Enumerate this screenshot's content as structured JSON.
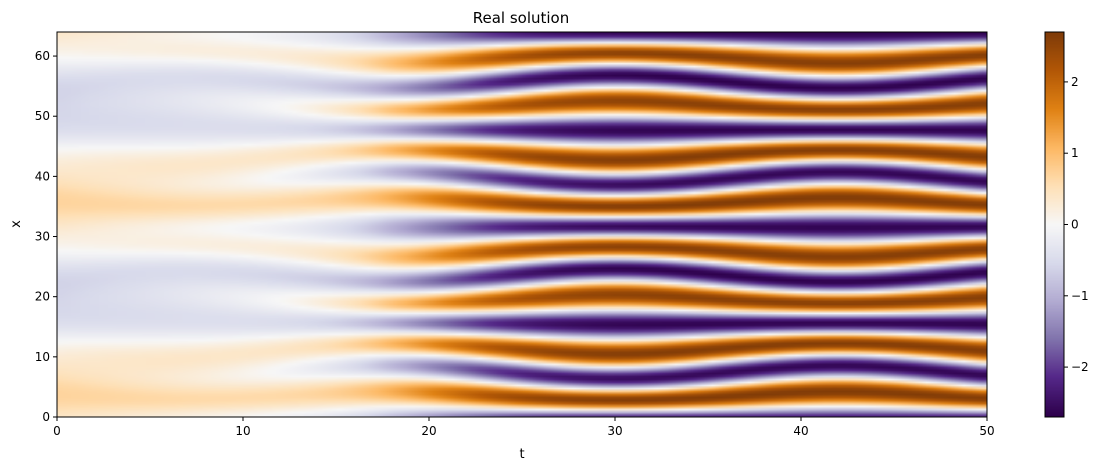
{
  "chart_data": {
    "type": "heatmap",
    "title": "Real solution",
    "xlabel": "t",
    "ylabel": "x",
    "xlim": [
      0,
      50
    ],
    "ylim": [
      0,
      64
    ],
    "x_ticks": [
      0,
      10,
      20,
      30,
      40,
      50
    ],
    "y_ticks": [
      0,
      10,
      20,
      30,
      40,
      50,
      60
    ],
    "colormap": "PuOr_r",
    "colors": {
      "low": "#2d004b",
      "mid": "#f7f7f7",
      "high": "#7f3b08"
    },
    "colorbar": {
      "range": [
        -2.7,
        2.7
      ],
      "ticks": [
        -2,
        -1,
        0,
        1,
        2
      ],
      "tick_labels": [
        "−2",
        "−1",
        "0",
        "1",
        "2"
      ]
    },
    "value_range": [
      -2.7,
      2.7
    ],
    "grid": false
  }
}
